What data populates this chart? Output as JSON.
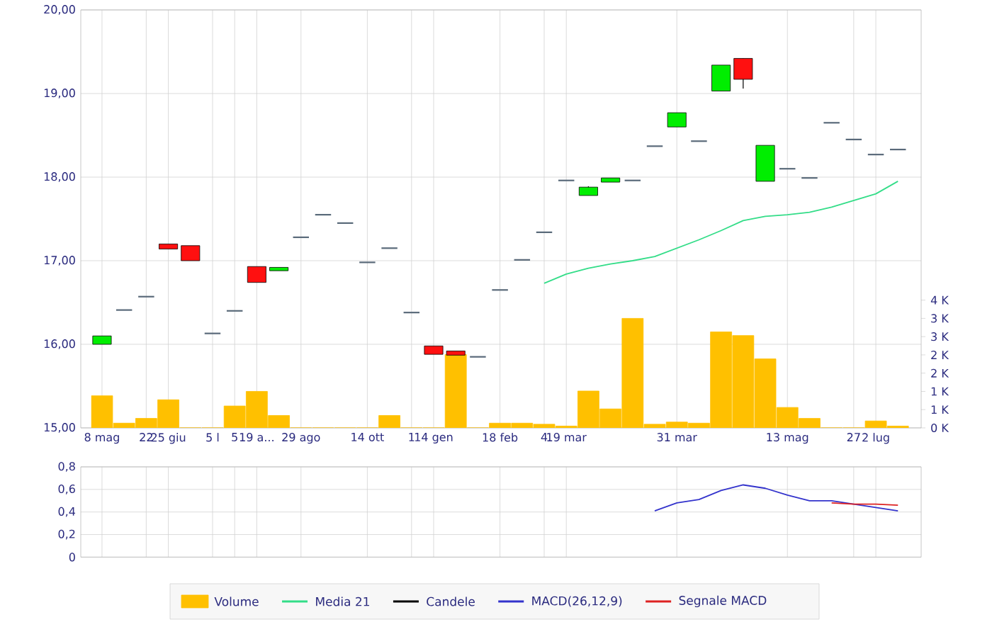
{
  "chart_data": [
    {
      "type": "candlestick",
      "categories": [
        "8 mag",
        null,
        "22",
        "25 giu",
        null,
        "5 l",
        "5",
        "19 a...",
        null,
        "29 ago",
        null,
        null,
        "14 ott",
        null,
        "1",
        "14 gen",
        null,
        null,
        "18 feb",
        null,
        "4",
        "19 mar",
        null,
        null,
        null,
        null,
        "31 mar",
        null,
        null,
        null,
        null,
        "13 mag",
        null,
        null,
        "27",
        "2 lug",
        null
      ],
      "series": [
        {
          "type": "bar",
          "name": "Volume",
          "color": "#ffc000",
          "axis": "y2",
          "values": [
            0.88,
            0.13,
            0.26,
            0.77,
            0,
            0,
            0.6,
            1.0,
            0.34,
            0,
            0,
            0,
            0,
            0.34,
            0,
            0,
            2.01,
            0,
            0.13,
            0.13,
            0.1,
            0.05,
            1.01,
            0.52,
            3.0,
            0.1,
            0.16,
            0.13,
            2.63,
            2.53,
            1.89,
            0.56,
            0.26,
            0,
            0,
            0.19,
            0.05
          ]
        },
        {
          "type": "line",
          "name": "Media 21",
          "color": "#33dd88",
          "values": [
            null,
            null,
            null,
            null,
            null,
            null,
            null,
            null,
            null,
            null,
            null,
            null,
            null,
            null,
            null,
            null,
            null,
            null,
            null,
            null,
            16.73,
            16.84,
            16.91,
            16.96,
            17.0,
            17.05,
            17.15,
            17.25,
            17.36,
            17.48,
            17.53,
            17.55,
            17.58,
            17.64,
            17.72,
            17.8,
            17.95
          ]
        },
        {
          "type": "candlestick",
          "name": "Candele",
          "color": "#000000",
          "ohlc": [
            [
              16.0,
              16.1,
              16.0,
              16.1
            ],
            [
              16.41,
              16.41,
              16.41,
              16.41
            ],
            [
              16.57,
              16.57,
              16.57,
              16.57
            ],
            [
              17.2,
              17.2,
              17.14,
              17.14
            ],
            [
              17.18,
              17.18,
              17.0,
              17.0
            ],
            [
              16.13,
              16.13,
              16.13,
              16.13
            ],
            [
              16.4,
              16.4,
              16.4,
              16.4
            ],
            [
              16.93,
              16.93,
              16.74,
              16.74
            ],
            [
              16.88,
              16.92,
              16.88,
              16.92
            ],
            [
              17.28,
              17.28,
              17.28,
              17.28
            ],
            [
              17.55,
              17.55,
              17.55,
              17.55
            ],
            [
              17.45,
              17.45,
              17.45,
              17.45
            ],
            [
              16.98,
              16.98,
              16.98,
              16.98
            ],
            [
              17.15,
              17.15,
              17.15,
              17.15
            ],
            [
              16.38,
              16.38,
              16.38,
              16.38
            ],
            [
              15.98,
              15.98,
              15.88,
              15.88
            ],
            [
              15.92,
              15.92,
              15.87,
              15.87
            ],
            [
              15.85,
              15.85,
              15.85,
              15.85
            ],
            [
              16.65,
              16.65,
              16.65,
              16.65
            ],
            [
              17.01,
              17.01,
              17.01,
              17.01
            ],
            [
              17.34,
              17.34,
              17.34,
              17.34
            ],
            [
              17.96,
              17.96,
              17.96,
              17.96
            ],
            [
              17.78,
              17.89,
              17.78,
              17.88
            ],
            [
              17.94,
              17.99,
              17.94,
              17.99
            ],
            [
              17.96,
              17.96,
              17.96,
              17.96
            ],
            [
              18.37,
              18.37,
              18.37,
              18.37
            ],
            [
              18.6,
              18.77,
              18.6,
              18.77
            ],
            [
              18.43,
              18.43,
              18.43,
              18.43
            ],
            [
              19.03,
              19.34,
              19.03,
              19.34
            ],
            [
              19.42,
              19.42,
              19.06,
              19.17
            ],
            [
              17.95,
              18.38,
              17.95,
              18.38
            ],
            [
              18.1,
              18.1,
              18.1,
              18.1
            ],
            [
              17.99,
              17.99,
              17.99,
              17.99
            ],
            [
              18.65,
              18.65,
              18.65,
              18.65
            ],
            [
              18.45,
              18.45,
              18.45,
              18.45
            ],
            [
              18.27,
              18.27,
              18.27,
              18.27
            ],
            [
              18.33,
              18.33,
              18.33,
              18.33
            ]
          ],
          "colors": [
            "#00ee00",
            "#5a6a7a",
            "#5a6a7a",
            "#ff1010",
            "#ff1010",
            "#5a6a7a",
            "#5a6a7a",
            "#ff1010",
            "#00ee00",
            "#5a6a7a",
            "#5a6a7a",
            "#5a6a7a",
            "#5a6a7a",
            "#5a6a7a",
            "#5a6a7a",
            "#ff1010",
            "#ff1010",
            "#5a6a7a",
            "#5a6a7a",
            "#5a6a7a",
            "#5a6a7a",
            "#5a6a7a",
            "#00ee00",
            "#00ee00",
            "#5a6a7a",
            "#5a6a7a",
            "#00ee00",
            "#5a6a7a",
            "#00ee00",
            "#ff1010",
            "#00ee00",
            "#5a6a7a",
            "#5a6a7a",
            "#5a6a7a",
            "#5a6a7a",
            "#5a6a7a",
            "#5a6a7a"
          ]
        }
      ],
      "ylim": [
        15,
        20
      ],
      "yticks": [
        {
          "value": 15,
          "label": "15,00"
        },
        {
          "value": 16,
          "label": "16,00"
        },
        {
          "value": 17,
          "label": "17,00"
        },
        {
          "value": 18,
          "label": "18,00"
        },
        {
          "value": 19,
          "label": "19,00"
        },
        {
          "value": 20,
          "label": "20,00"
        }
      ],
      "y2lim": [
        0,
        11.45
      ],
      "y2ticks": [
        {
          "value": 0,
          "label": "0 K"
        },
        {
          "value": 0.5,
          "label": "1 K"
        },
        {
          "value": 1,
          "label": "1 K"
        },
        {
          "value": 1.5,
          "label": "2 K"
        },
        {
          "value": 2,
          "label": "2 K"
        },
        {
          "value": 2.5,
          "label": "3 K"
        },
        {
          "value": 3,
          "label": "3 K"
        },
        {
          "value": 3.5,
          "label": "4 K"
        }
      ],
      "grid": true,
      "legend": "bottom"
    },
    {
      "type": "line",
      "categories": [
        null,
        null,
        null,
        null,
        null,
        null,
        null,
        null,
        null,
        null,
        null,
        null,
        null,
        null,
        null,
        null,
        null,
        null,
        null,
        null,
        null,
        null,
        null,
        null,
        null,
        null,
        null,
        null,
        null,
        null,
        null,
        null,
        null,
        null,
        null,
        null,
        null
      ],
      "series": [
        {
          "name": "MACD(26,12,9)",
          "color": "#3333cc",
          "values": [
            null,
            null,
            null,
            null,
            null,
            null,
            null,
            null,
            null,
            null,
            null,
            null,
            null,
            null,
            null,
            null,
            null,
            null,
            null,
            null,
            null,
            null,
            null,
            null,
            null,
            0.41,
            0.48,
            0.51,
            0.59,
            0.64,
            0.61,
            0.55,
            0.5,
            0.5,
            0.47,
            0.44,
            0.41
          ]
        },
        {
          "name": "Segnale MACD",
          "color": "#dd2222",
          "values": [
            null,
            null,
            null,
            null,
            null,
            null,
            null,
            null,
            null,
            null,
            null,
            null,
            null,
            null,
            null,
            null,
            null,
            null,
            null,
            null,
            null,
            null,
            null,
            null,
            null,
            null,
            null,
            null,
            null,
            null,
            null,
            null,
            null,
            0.48,
            0.47,
            0.47,
            0.46
          ]
        }
      ],
      "ylim": [
        0,
        0.8
      ],
      "yticks": [
        0,
        {
          "value": 0.2,
          "label": "0,2"
        },
        {
          "value": 0.4,
          "label": "0,4"
        },
        {
          "value": 0.6,
          "label": "0,6"
        },
        {
          "value": 0.8,
          "label": "0,8"
        }
      ],
      "tick_labels": "y",
      "grid": true,
      "legend": "bottom"
    }
  ]
}
